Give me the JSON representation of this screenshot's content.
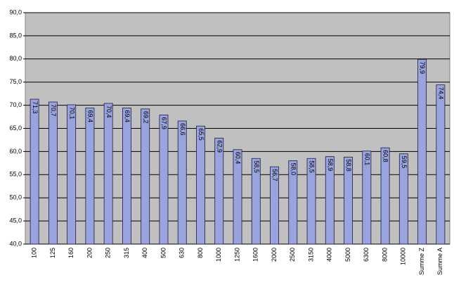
{
  "chart_data": {
    "type": "bar",
    "categories": [
      "100",
      "125",
      "160",
      "200",
      "250",
      "315",
      "400",
      "500",
      "630",
      "800",
      "1000",
      "1250",
      "1600",
      "2000",
      "2500",
      "3150",
      "4000",
      "5000",
      "6300",
      "8000",
      "10000",
      "Summe Z",
      "Summe A"
    ],
    "values": [
      71.3,
      70.7,
      70.1,
      69.4,
      70.4,
      69.4,
      69.2,
      67.9,
      66.6,
      65.5,
      62.9,
      60.4,
      58.5,
      56.7,
      58.0,
      58.5,
      58.9,
      58.8,
      60.1,
      60.8,
      59.5,
      79.9,
      74.4
    ],
    "value_labels": [
      "71,3",
      "70,7",
      "70,1",
      "69,4",
      "70,4",
      "69,4",
      "69,2",
      "67,9",
      "66,6",
      "65,5",
      "62,9",
      "60,4",
      "58,5",
      "56,7",
      "58,0",
      "58,5",
      "58,9",
      "58,8",
      "60,1",
      "60,8",
      "59,5",
      "79,9",
      "74,4"
    ],
    "color": "#99a3dd",
    "ylim": [
      40,
      90
    ],
    "yticks": [
      {
        "value": 40,
        "label": "40,0"
      },
      {
        "value": 45,
        "label": "45,0"
      },
      {
        "value": 50,
        "label": "50,0"
      },
      {
        "value": 55,
        "label": "55,0"
      },
      {
        "value": 60,
        "label": "60,0"
      },
      {
        "value": 65,
        "label": "65,0"
      },
      {
        "value": 70,
        "label": "70,0"
      },
      {
        "value": 75,
        "label": "75,0"
      },
      {
        "value": 80,
        "label": "80,0"
      },
      {
        "value": 85,
        "label": "85,0"
      },
      {
        "value": 90,
        "label": "90,0"
      }
    ],
    "grid": true
  }
}
